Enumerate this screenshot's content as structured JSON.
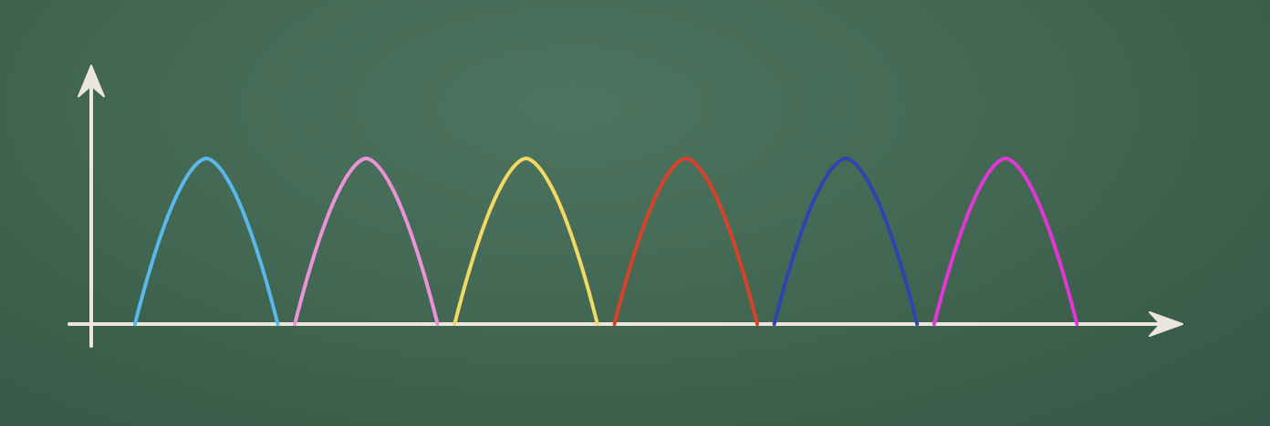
{
  "chart_data": {
    "type": "line",
    "title": "",
    "xlabel": "",
    "ylabel": "",
    "xlim": [
      0,
      100
    ],
    "ylim": [
      0,
      100
    ],
    "grid": false,
    "legend": "none",
    "series": [
      {
        "color": "#5ab8ea",
        "x": [
          5.3,
          12.0,
          18.7
        ],
        "y": [
          0,
          100,
          0
        ]
      },
      {
        "color": "#ec92d6",
        "x": [
          20.3,
          27.0,
          33.7
        ],
        "y": [
          0,
          100,
          0
        ]
      },
      {
        "color": "#f3d963",
        "x": [
          35.3,
          42.0,
          48.7
        ],
        "y": [
          0,
          100,
          0
        ]
      },
      {
        "color": "#d8412a",
        "x": [
          50.3,
          57.0,
          63.7
        ],
        "y": [
          0,
          100,
          0
        ]
      },
      {
        "color": "#2e45b0",
        "x": [
          65.3,
          72.0,
          78.7
        ],
        "y": [
          0,
          100,
          0
        ]
      },
      {
        "color": "#e236d6",
        "x": [
          80.3,
          87.0,
          93.7
        ],
        "y": [
          0,
          100,
          0
        ]
      }
    ],
    "axis_color": "#ece6df"
  }
}
